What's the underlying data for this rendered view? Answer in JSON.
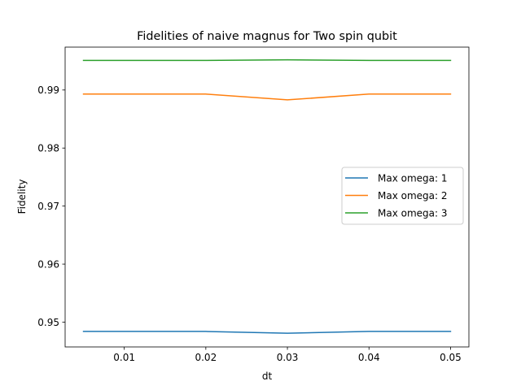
{
  "chart_data": {
    "type": "line",
    "title": "Fidelities of naive magnus for Two spin qubit",
    "xlabel": "dt",
    "ylabel": "Fidelity",
    "x": [
      0.005,
      0.02,
      0.03,
      0.04,
      0.05
    ],
    "xlim": [
      0.00275,
      0.05225
    ],
    "ylim": [
      0.94573,
      0.99739
    ],
    "xticks": [
      0.01,
      0.02,
      0.03,
      0.04,
      0.05
    ],
    "xtick_labels": [
      "0.01",
      "0.02",
      "0.03",
      "0.04",
      "0.05"
    ],
    "yticks": [
      0.95,
      0.96,
      0.97,
      0.98,
      0.99
    ],
    "ytick_labels": [
      "0.95",
      "0.96",
      "0.97",
      "0.98",
      "0.99"
    ],
    "grid": false,
    "legend_position": "center-right",
    "series": [
      {
        "name": "Max omega: 1",
        "color": "#1f77b4",
        "values": [
          0.9484,
          0.9484,
          0.9481,
          0.9484,
          0.9484
        ]
      },
      {
        "name": "Max omega: 2",
        "color": "#ff7f0e",
        "values": [
          0.9893,
          0.9893,
          0.9883,
          0.9893,
          0.9893
        ]
      },
      {
        "name": "Max omega: 3",
        "color": "#2ca02c",
        "values": [
          0.9951,
          0.9951,
          0.9952,
          0.9951,
          0.9951
        ]
      }
    ]
  }
}
